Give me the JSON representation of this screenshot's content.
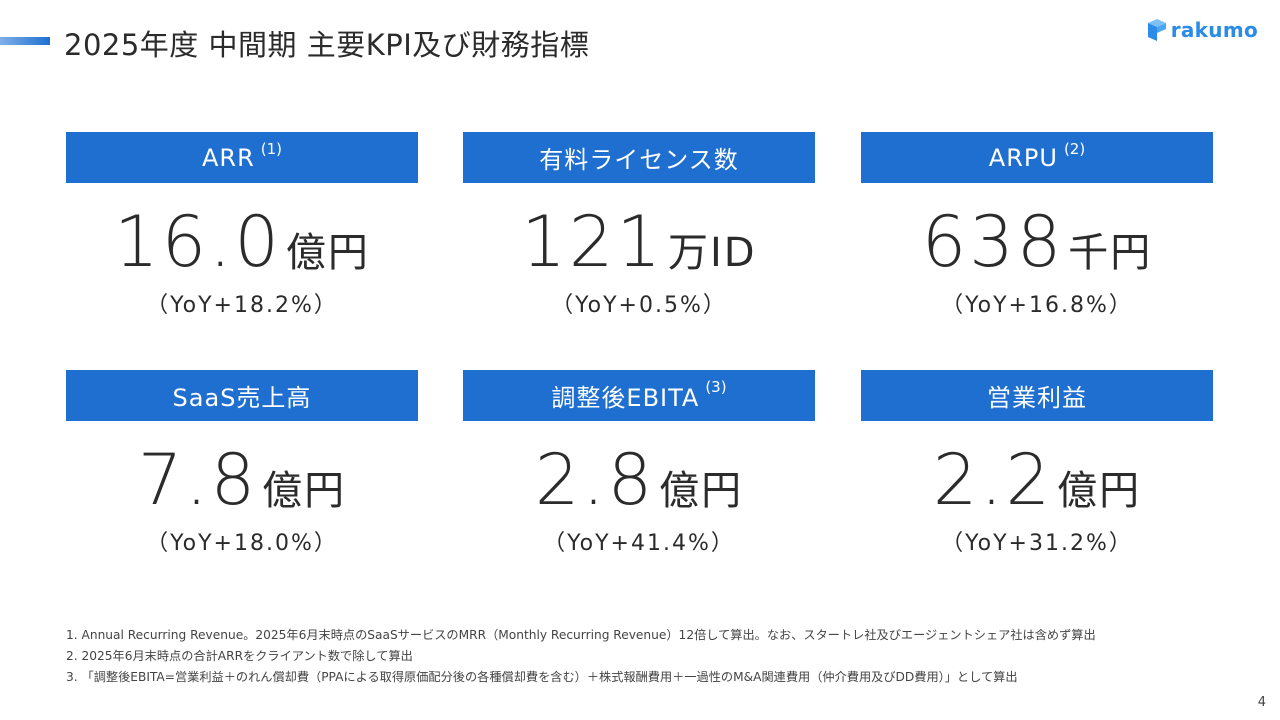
{
  "header": {
    "title": "2025年度 中間期 主要KPI及び財務指標"
  },
  "logo": {
    "text": "rakumo",
    "icon": "rakumo-logo-icon",
    "color": "#2a8be8"
  },
  "colors": {
    "accent": "#1f6fd1",
    "text": "#2b2b2b"
  },
  "kpis": [
    {
      "label": "ARR",
      "note": "(1)",
      "value": "16.0",
      "unit": "億円",
      "yoy": "（YoY+18.2%）"
    },
    {
      "label": "有料ライセンス数",
      "note": "",
      "value": "121",
      "unit": "万ID",
      "yoy": "（YoY+0.5%）"
    },
    {
      "label": "ARPU",
      "note": "(2)",
      "value": "638",
      "unit": "千円",
      "yoy": "（YoY+16.8%）"
    },
    {
      "label": "SaaS売上高",
      "note": "",
      "value": "7.8",
      "unit": "億円",
      "yoy": "（YoY+18.0%）"
    },
    {
      "label": "調整後EBITA",
      "note": "(3)",
      "value": "2.8",
      "unit": "億円",
      "yoy": "（YoY+41.4%）"
    },
    {
      "label": "営業利益",
      "note": "",
      "value": "2.2",
      "unit": "億円",
      "yoy": "（YoY+31.2%）"
    }
  ],
  "footnotes": [
    "1. Annual Recurring Revenue。2025年6月末時点のSaaSサービスのMRR（Monthly Recurring Revenue）12倍して算出。なお、スタートレ社及びエージェントシェア社は含めず算出",
    "2. 2025年6月末時点の合計ARRをクライアント数で除して算出",
    "3. 「調整後EBITA=営業利益＋のれん償却費（PPAによる取得原価配分後の各種償却費を含む）＋株式報酬費用＋一過性のM&A関連費用（仲介費用及びDD費用）」として算出"
  ],
  "page": {
    "number": "4"
  }
}
